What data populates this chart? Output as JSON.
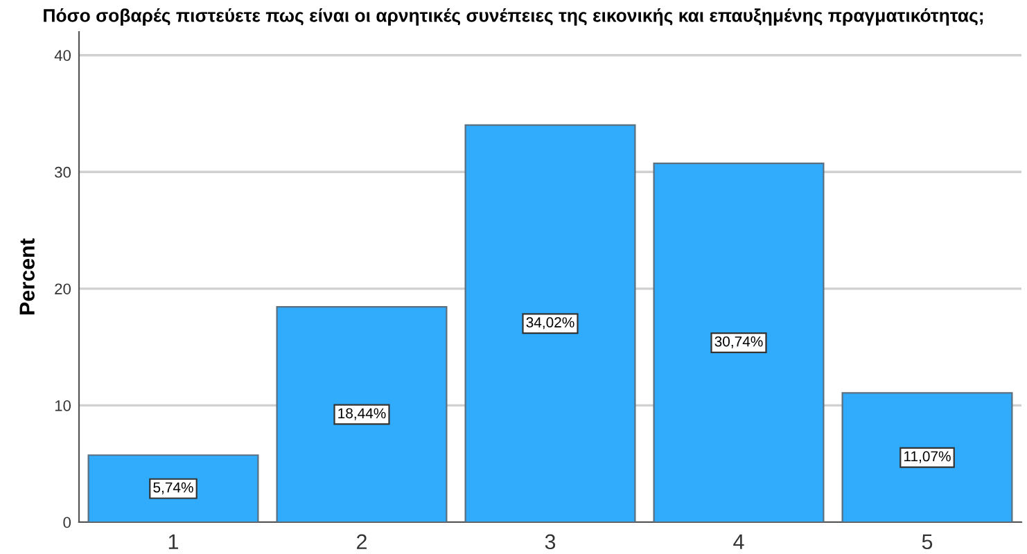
{
  "chart_data": {
    "type": "bar",
    "title": "Πόσο σοβαρές πιστεύετε πως είναι οι αρνητικές συνέπειες της εικονικής και επαυξημένης πραγματικότητας;",
    "ylabel": "Percent",
    "categories": [
      "1",
      "2",
      "3",
      "4",
      "5"
    ],
    "values": [
      5.74,
      18.44,
      34.02,
      30.74,
      11.07
    ],
    "value_labels": [
      "5,74%",
      "18,44%",
      "34,02%",
      "30,74%",
      "11,07%"
    ],
    "color": "#31acfc",
    "ylim": [
      0,
      42
    ],
    "yticks": [
      0,
      10,
      20,
      30,
      40
    ],
    "grid": "y"
  }
}
